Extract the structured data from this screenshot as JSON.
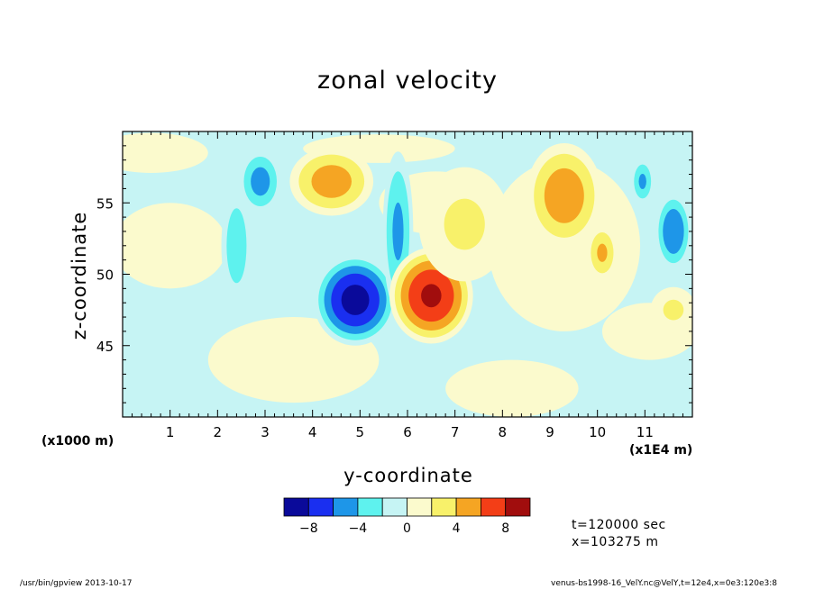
{
  "chart_data": {
    "type": "contour",
    "title": "zonal velocity",
    "xlabel": "y-coordinate",
    "ylabel": "z-coordinate",
    "x_unit": "(x1E4 m)",
    "y_unit": "(x1000 m)",
    "xlim": [
      0,
      12
    ],
    "ylim": [
      40,
      60
    ],
    "x_ticks": [
      1,
      2,
      3,
      4,
      5,
      6,
      7,
      8,
      9,
      10,
      11
    ],
    "y_ticks": [
      45,
      50,
      55
    ],
    "colorbar": {
      "levels": [
        -10,
        -8,
        -6,
        -4,
        -2,
        0,
        2,
        4,
        6,
        8,
        10
      ],
      "tick_labels": [
        "-8",
        "-4",
        "0",
        "4",
        "8"
      ],
      "tick_values": [
        -8,
        -4,
        0,
        4,
        8
      ],
      "colors": [
        "#0a0a9a",
        "#1a2ff0",
        "#1e96e8",
        "#5ef2ee",
        "#c6f4f4",
        "#fbfacd",
        "#f8f16a",
        "#f5a523",
        "#f33e17",
        "#a10d0d"
      ]
    },
    "features": [
      {
        "y": 4.9,
        "z": 48.2,
        "value": -9,
        "ry": 0.55,
        "rz": 2.0
      },
      {
        "y": 5.8,
        "z": 53.0,
        "value": -4.6,
        "ry": 0.2,
        "rz": 3.5
      },
      {
        "y": 2.9,
        "z": 56.5,
        "value": -5,
        "ry": 0.28,
        "rz": 1.4
      },
      {
        "y": 2.4,
        "z": 52.0,
        "value": -3.5,
        "ry": 0.2,
        "rz": 2.5
      },
      {
        "y": 10.95,
        "z": 56.5,
        "value": -4.5,
        "ry": 0.15,
        "rz": 1.0
      },
      {
        "y": 11.6,
        "z": 53.0,
        "value": -6,
        "ry": 0.24,
        "rz": 1.7
      },
      {
        "y": 4.4,
        "z": 56.5,
        "value": 5.2,
        "ry": 0.55,
        "rz": 1.5
      },
      {
        "y": 6.5,
        "z": 48.5,
        "value": 8.5,
        "ry": 0.55,
        "rz": 2.1
      },
      {
        "y": 9.3,
        "z": 55.5,
        "value": 5.5,
        "ry": 0.5,
        "rz": 2.3
      },
      {
        "y": 10.1,
        "z": 51.5,
        "value": 4.5,
        "ry": 0.2,
        "rz": 1.2
      },
      {
        "y": 7.2,
        "z": 53.5,
        "value": 2.5,
        "ry": 0.6,
        "rz": 2.5
      },
      {
        "y": 11.6,
        "z": 47.5,
        "value": 2.5,
        "ry": 0.3,
        "rz": 1.0
      }
    ]
  },
  "units": {
    "y": "(x1000 m)",
    "x": "(x1E4 m)"
  },
  "info": {
    "time": "t=120000 sec",
    "position": "x=103275 m"
  },
  "footer": {
    "left": "/usr/bin/gpview  2013-10-17",
    "right": "venus-bs1998-16_VelY.nc@VelY,t=12e4,x=0e3:120e3:8"
  }
}
